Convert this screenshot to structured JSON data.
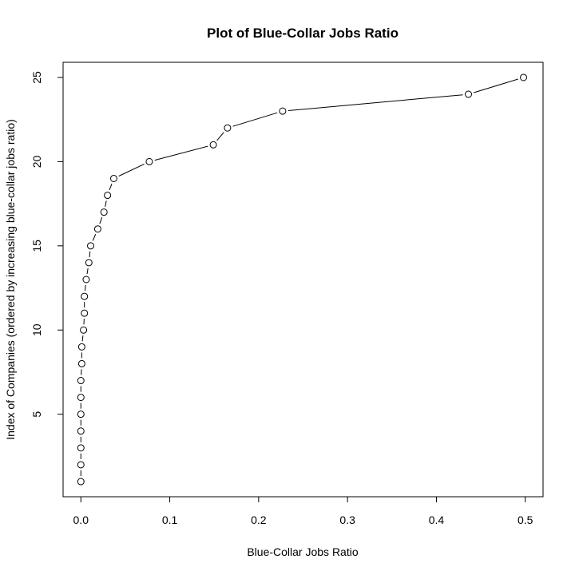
{
  "chart_data": {
    "type": "scatter",
    "title": "Plot of Blue-Collar Jobs Ratio",
    "xlabel": "Blue-Collar Jobs Ratio",
    "ylabel": "Index of Companies (ordered by increasing blue-collar jobs ratio)",
    "xlim": [
      -0.02,
      0.52
    ],
    "ylim": [
      0.1,
      25.9
    ],
    "x_ticks": [
      0.0,
      0.1,
      0.2,
      0.3,
      0.4,
      0.5
    ],
    "x_tick_labels": [
      "0.0",
      "0.1",
      "0.2",
      "0.3",
      "0.4",
      "0.5"
    ],
    "y_ticks": [
      5,
      10,
      15,
      20,
      25
    ],
    "y_tick_labels": [
      "5",
      "10",
      "15",
      "20",
      "25"
    ],
    "grid": false,
    "marker": "open-circle",
    "line": "connected (type b)",
    "colors": {
      "marker_stroke": "#000000",
      "marker_fill": "#ffffff",
      "line": "#000000",
      "axis": "#000000"
    },
    "points": [
      {
        "x": 0.0,
        "y": 1
      },
      {
        "x": 0.0,
        "y": 2
      },
      {
        "x": 0.0,
        "y": 3
      },
      {
        "x": 0.0,
        "y": 4
      },
      {
        "x": 0.0,
        "y": 5
      },
      {
        "x": 0.0,
        "y": 6
      },
      {
        "x": 0.0,
        "y": 7
      },
      {
        "x": 0.001,
        "y": 8
      },
      {
        "x": 0.001,
        "y": 9
      },
      {
        "x": 0.003,
        "y": 10
      },
      {
        "x": 0.004,
        "y": 11
      },
      {
        "x": 0.004,
        "y": 12
      },
      {
        "x": 0.006,
        "y": 13
      },
      {
        "x": 0.009,
        "y": 14
      },
      {
        "x": 0.011,
        "y": 15
      },
      {
        "x": 0.019,
        "y": 16
      },
      {
        "x": 0.026,
        "y": 17
      },
      {
        "x": 0.03,
        "y": 18
      },
      {
        "x": 0.037,
        "y": 19
      },
      {
        "x": 0.077,
        "y": 20
      },
      {
        "x": 0.149,
        "y": 21
      },
      {
        "x": 0.165,
        "y": 22
      },
      {
        "x": 0.227,
        "y": 23
      },
      {
        "x": 0.436,
        "y": 24
      },
      {
        "x": 0.498,
        "y": 25
      }
    ]
  }
}
